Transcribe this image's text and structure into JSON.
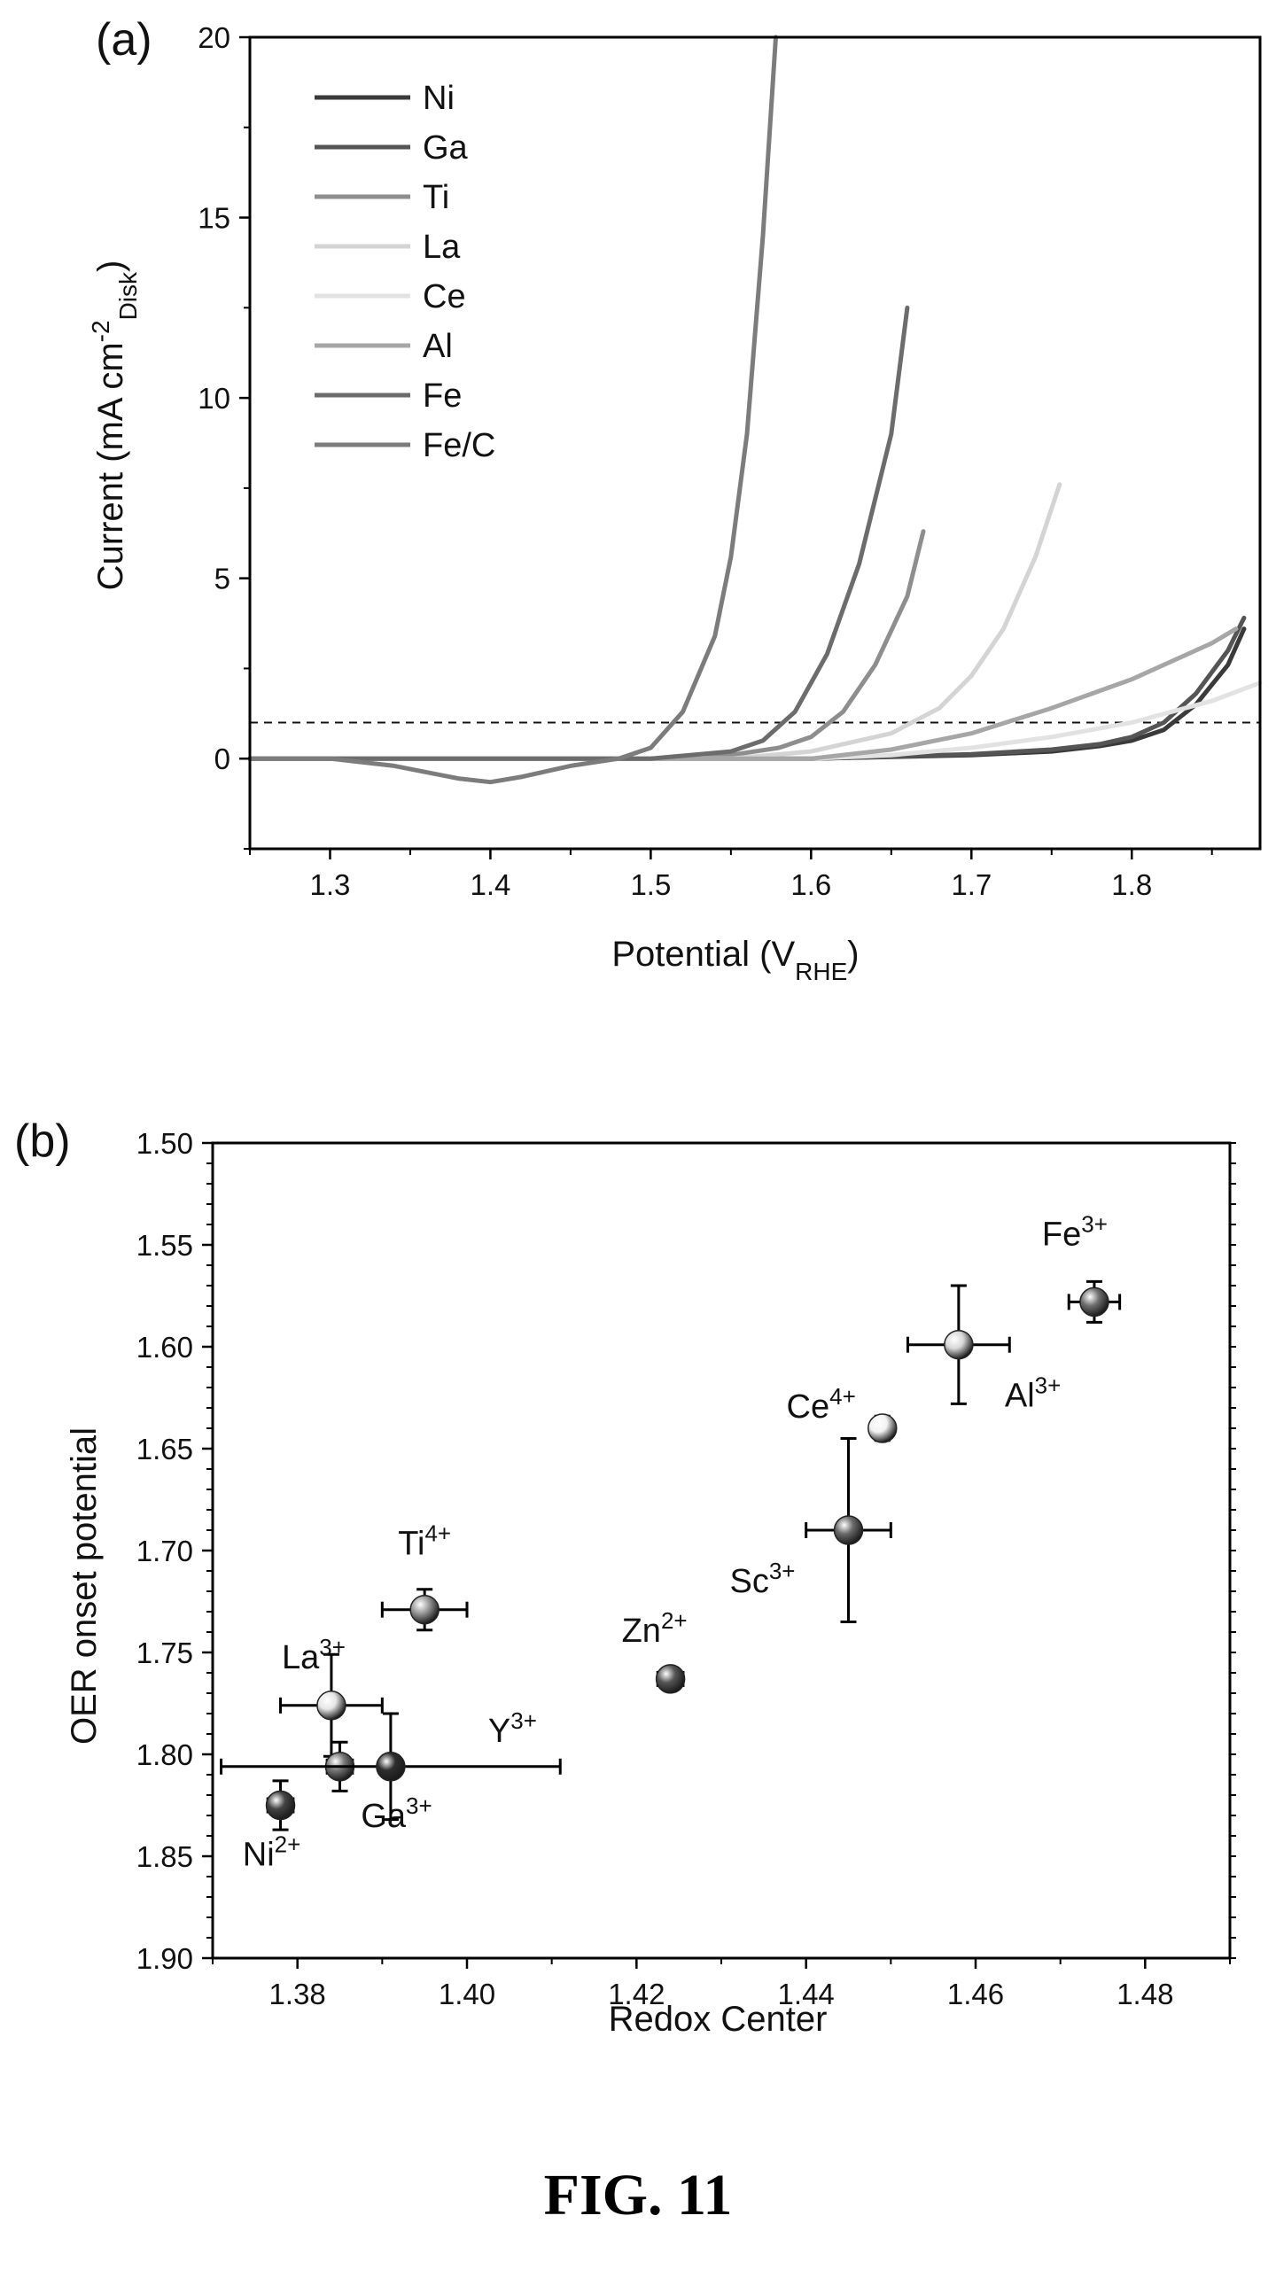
{
  "figure_caption": "FIG. 11",
  "chart_data": [
    {
      "panel": "(a)",
      "type": "line",
      "xlabel": "Potential (V",
      "xlabel_sub": "RHE",
      "xlabel_end": ")",
      "ylabel_pre": "Current (mA cm",
      "ylabel_sup": "-2",
      "ylabel_sub": "Disk",
      "ylabel_end": ")",
      "xlim": [
        1.25,
        1.88
      ],
      "ylim": [
        -2.5,
        20
      ],
      "xticks": [
        "1.3",
        "1.4",
        "1.5",
        "1.6",
        "1.7",
        "1.8"
      ],
      "yticks": [
        "0",
        "5",
        "10",
        "15",
        "20"
      ],
      "reference_line_y": 1,
      "legend_position": "top-left",
      "series": [
        {
          "name": "Ni",
          "color": "#3a3a3a",
          "x": [
            1.25,
            1.6,
            1.7,
            1.75,
            1.78,
            1.8,
            1.82,
            1.84,
            1.86,
            1.87
          ],
          "y": [
            0,
            0,
            0.1,
            0.2,
            0.35,
            0.5,
            0.8,
            1.5,
            2.6,
            3.6
          ]
        },
        {
          "name": "Ga",
          "color": "#555555",
          "x": [
            1.25,
            1.6,
            1.7,
            1.75,
            1.78,
            1.8,
            1.82,
            1.84,
            1.86,
            1.87
          ],
          "y": [
            0,
            0,
            0.12,
            0.25,
            0.4,
            0.6,
            1.0,
            1.8,
            3.0,
            3.9
          ]
        },
        {
          "name": "Ti",
          "color": "#8e8e8e",
          "x": [
            1.25,
            1.5,
            1.55,
            1.58,
            1.6,
            1.62,
            1.64,
            1.66,
            1.67
          ],
          "y": [
            0,
            0,
            0.1,
            0.3,
            0.6,
            1.3,
            2.6,
            4.5,
            6.3
          ]
        },
        {
          "name": "La",
          "color": "#d4d4d4",
          "x": [
            1.25,
            1.55,
            1.6,
            1.65,
            1.68,
            1.7,
            1.72,
            1.74,
            1.755
          ],
          "y": [
            0,
            0,
            0.2,
            0.7,
            1.4,
            2.3,
            3.6,
            5.6,
            7.6
          ]
        },
        {
          "name": "Ce",
          "color": "#e2e2e2",
          "x": [
            1.25,
            1.6,
            1.65,
            1.7,
            1.75,
            1.8,
            1.85,
            1.88
          ],
          "y": [
            0,
            0,
            0.1,
            0.3,
            0.6,
            1.0,
            1.6,
            2.1
          ]
        },
        {
          "name": "Al",
          "color": "#a6a6a6",
          "x": [
            1.25,
            1.6,
            1.65,
            1.7,
            1.75,
            1.8,
            1.85,
            1.865
          ],
          "y": [
            0,
            0,
            0.25,
            0.7,
            1.4,
            2.2,
            3.2,
            3.6
          ]
        },
        {
          "name": "Fe",
          "color": "#6c6c6c",
          "x": [
            1.25,
            1.5,
            1.55,
            1.57,
            1.59,
            1.61,
            1.63,
            1.65,
            1.66
          ],
          "y": [
            0,
            0,
            0.2,
            0.5,
            1.3,
            2.9,
            5.4,
            9.0,
            12.5
          ]
        },
        {
          "name": "Fe/C",
          "color": "#7c7c7c",
          "x": [
            1.25,
            1.3,
            1.34,
            1.38,
            1.4,
            1.42,
            1.45,
            1.48,
            1.5,
            1.52,
            1.54,
            1.55,
            1.56,
            1.57,
            1.578
          ],
          "y": [
            0,
            0,
            -0.2,
            -0.55,
            -0.65,
            -0.5,
            -0.2,
            0,
            0.3,
            1.3,
            3.4,
            5.6,
            9.0,
            14.5,
            20
          ]
        }
      ]
    },
    {
      "panel": "(b)",
      "type": "scatter",
      "xlabel": "Redox Center",
      "ylabel": "OER onset potential",
      "xlim": [
        1.37,
        1.49
      ],
      "ylim": [
        1.5,
        1.9
      ],
      "y_inverted": true,
      "xticks": [
        "1.38",
        "1.40",
        "1.42",
        "1.44",
        "1.46",
        "1.48"
      ],
      "yticks": [
        "1.50",
        "1.55",
        "1.60",
        "1.65",
        "1.70",
        "1.75",
        "1.80",
        "1.85",
        "1.90"
      ],
      "points": [
        {
          "ion": "Ni",
          "charge": "2+",
          "x": 1.378,
          "y": 1.825,
          "xerr": 0.0015,
          "yerr": 0.012,
          "color": "#444444"
        },
        {
          "ion": "La",
          "charge": "3+",
          "x": 1.384,
          "y": 1.776,
          "xerr": 0.006,
          "yerr": 0.025,
          "color": "#e6e6e6"
        },
        {
          "ion": "Ga",
          "charge": "3+",
          "x": 1.385,
          "y": 1.806,
          "xerr": 0.0015,
          "yerr": 0.012,
          "color": "#777777"
        },
        {
          "ion": "Y",
          "charge": "3+",
          "x": 1.391,
          "y": 1.806,
          "xerr": 0.02,
          "yerr": 0.026,
          "color": "#2e2e2e"
        },
        {
          "ion": "Ti",
          "charge": "4+",
          "x": 1.395,
          "y": 1.729,
          "xerr": 0.005,
          "yerr": 0.01,
          "color": "#9a9a9a"
        },
        {
          "ion": "Zn",
          "charge": "2+",
          "x": 1.424,
          "y": 1.763,
          "xerr": 0.0015,
          "yerr": 0.005,
          "color": "#555555"
        },
        {
          "ion": "Sc",
          "charge": "3+",
          "x": 1.445,
          "y": 1.69,
          "xerr": 0.005,
          "yerr": 0.045,
          "color": "#6a6a6a"
        },
        {
          "ion": "Ce",
          "charge": "4+",
          "x": 1.449,
          "y": 1.64,
          "xerr": 0.0012,
          "yerr": 0.006,
          "color": "#f2f2f2"
        },
        {
          "ion": "Al",
          "charge": "3+",
          "x": 1.458,
          "y": 1.599,
          "xerr": 0.006,
          "yerr": 0.029,
          "color": "#d8d8d8"
        },
        {
          "ion": "Fe",
          "charge": "3+",
          "x": 1.474,
          "y": 1.578,
          "xerr": 0.003,
          "yerr": 0.01,
          "color": "#707070"
        }
      ]
    }
  ]
}
